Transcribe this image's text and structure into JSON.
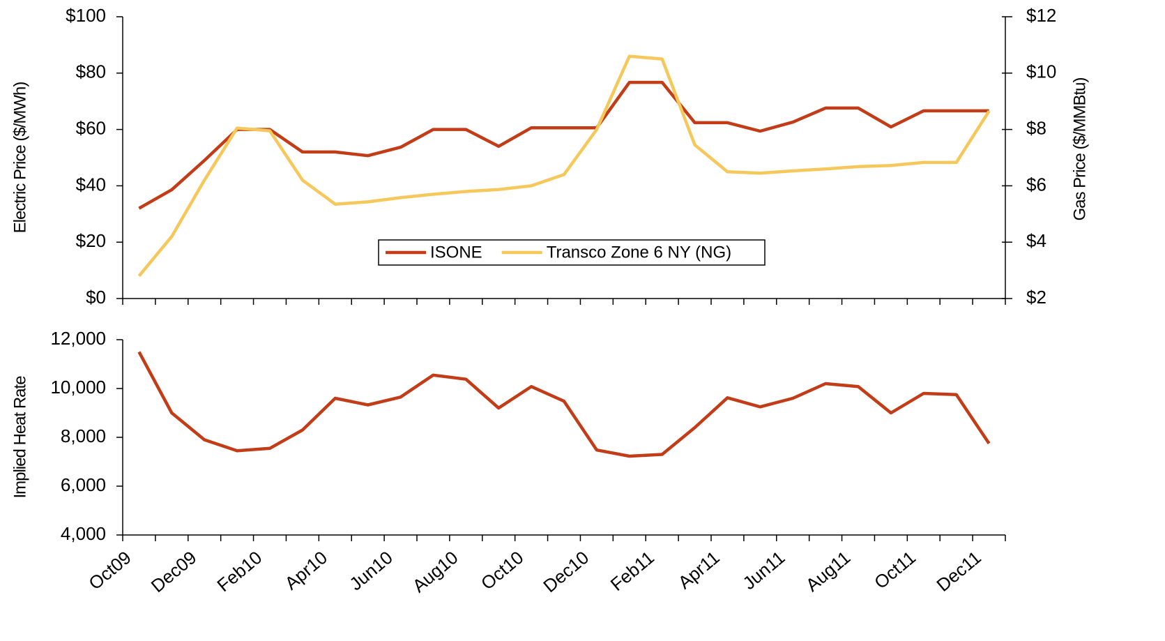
{
  "chart_data": [
    {
      "type": "line",
      "ylabel": "Electric Price ($/MWh)",
      "y2label": "Gas Price ($/MMBtu)",
      "ylim": [
        0,
        100
      ],
      "yticks": [
        {
          "value": 0,
          "label": "$0"
        },
        {
          "value": 20,
          "label": "$20"
        },
        {
          "value": 40,
          "label": "$40"
        },
        {
          "value": 60,
          "label": "$60"
        },
        {
          "value": 80,
          "label": "$80"
        },
        {
          "value": 100,
          "label": "$100"
        }
      ],
      "y2lim": [
        2,
        12
      ],
      "y2ticks": [
        {
          "value": 2,
          "label": "$2"
        },
        {
          "value": 4,
          "label": "$4"
        },
        {
          "value": 6,
          "label": "$6"
        },
        {
          "value": 8,
          "label": "$8"
        },
        {
          "value": 10,
          "label": "$10"
        },
        {
          "value": 12,
          "label": "$12"
        }
      ],
      "legend_loc": "lower center",
      "series": [
        {
          "name": "ISONE",
          "color": "#c23c17",
          "values": [
            32,
            38.6,
            49,
            60,
            60,
            52,
            52,
            50.7,
            53.7,
            60,
            60,
            54,
            60.6,
            60.6,
            60.6,
            76.7,
            76.7,
            62.4,
            62.4,
            59.4,
            62.6,
            67.6,
            67.6,
            60.9,
            66.6,
            66.6,
            66.6
          ]
        },
        {
          "name": "Transco Zone 6 NY (NG)",
          "color": "#f6c85b",
          "axis": "y2",
          "values": [
            2.8,
            4.2,
            6.2,
            8.05,
            7.95,
            6.2,
            5.35,
            5.43,
            5.58,
            5.7,
            5.8,
            5.87,
            6.0,
            6.4,
            8.0,
            10.6,
            10.5,
            7.45,
            6.5,
            6.45,
            6.53,
            6.6,
            6.68,
            6.72,
            6.83,
            6.83,
            8.65
          ]
        }
      ]
    },
    {
      "type": "line",
      "ylabel": "Implied Heat Rate",
      "ylim": [
        4000,
        12000
      ],
      "yticks": [
        {
          "value": 4000,
          "label": "4,000"
        },
        {
          "value": 6000,
          "label": "6,000"
        },
        {
          "value": 8000,
          "label": "8,000"
        },
        {
          "value": 10000,
          "label": "10,000"
        },
        {
          "value": 12000,
          "label": "12,000"
        }
      ],
      "categories": [
        "Oct09",
        null,
        "Dec09",
        null,
        "Feb10",
        null,
        "Apr10",
        null,
        "Jun10",
        null,
        "Aug10",
        null,
        "Oct10",
        null,
        "Dec10",
        null,
        "Feb11",
        null,
        "Apr11",
        null,
        "Jun11",
        null,
        "Aug11",
        null,
        "Oct11",
        null,
        "Dec11"
      ],
      "color": "#c23c17",
      "values": [
        11500,
        9000,
        7900,
        7450,
        7550,
        8300,
        9600,
        9330,
        9650,
        10550,
        10380,
        9200,
        10080,
        9480,
        7480,
        7230,
        7300,
        8400,
        9620,
        9250,
        9600,
        10200,
        10080,
        9000,
        9800,
        9750,
        7750
      ]
    }
  ]
}
